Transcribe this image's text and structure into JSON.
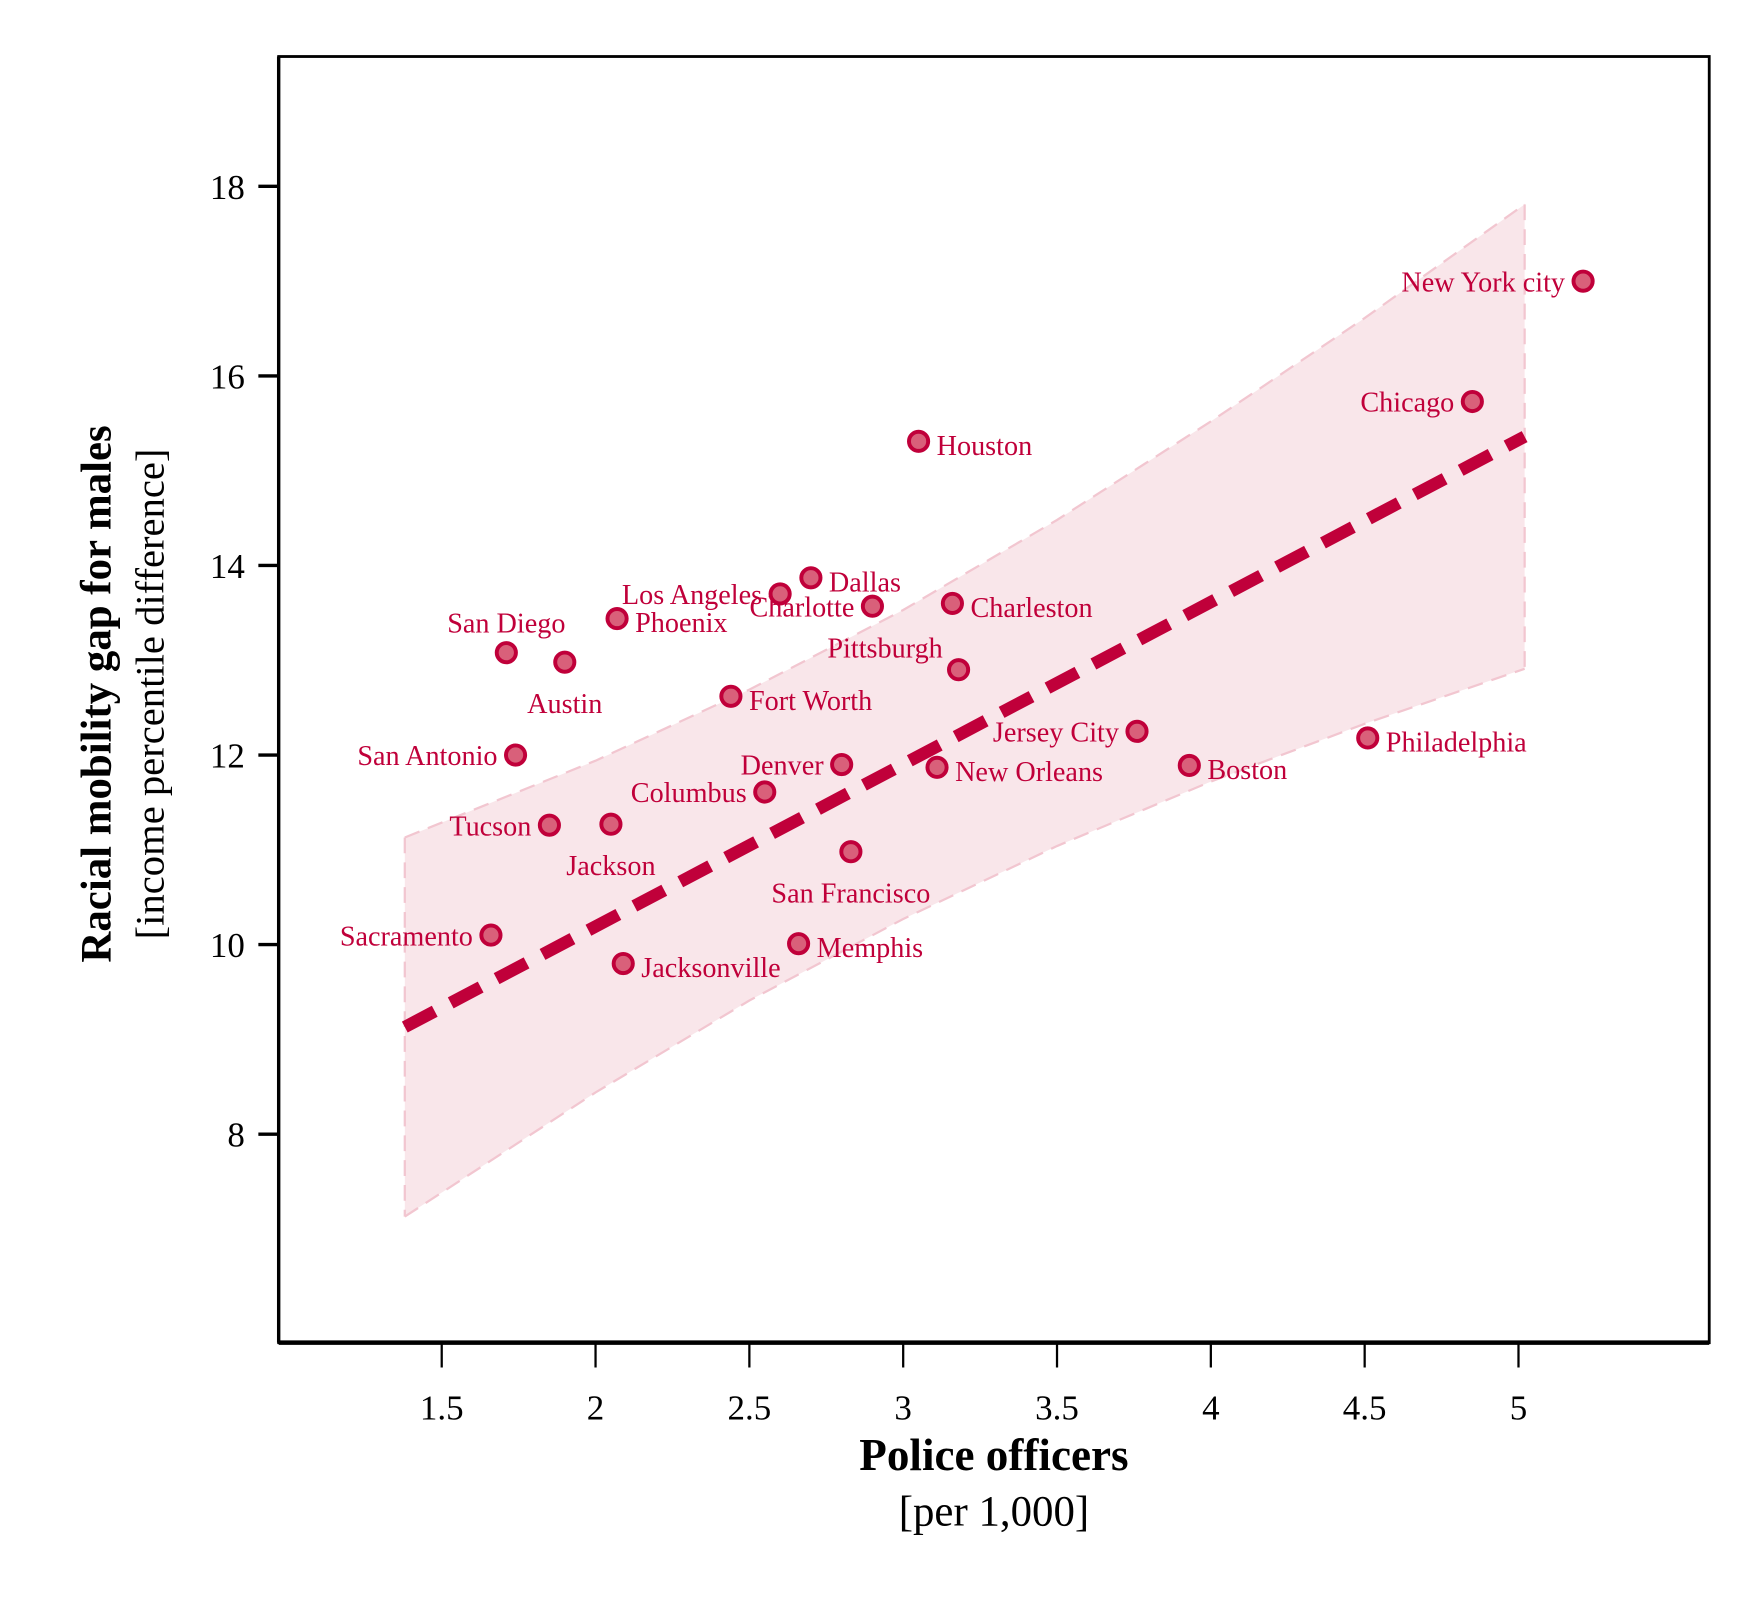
{
  "chart_data": {
    "type": "scatter",
    "xlabel": "Police officers",
    "xlabel_sub": "[per 1,000]",
    "ylabel": "Racial mobility gap for males",
    "ylabel_sub": "[income percentile difference]",
    "xlim": [
      0.97,
      5.62
    ],
    "ylim": [
      5.8,
      19.37
    ],
    "xticks": [
      1.5,
      2,
      2.5,
      3,
      3.5,
      4,
      4.5,
      5
    ],
    "xtick_labels": [
      "1.5",
      "2",
      "2.5",
      "3",
      "3.5",
      "4",
      "4.5",
      "5"
    ],
    "yticks": [
      8,
      10,
      12,
      14,
      16,
      18
    ],
    "ytick_labels": [
      "8",
      "10",
      "12",
      "14",
      "16",
      "18"
    ],
    "grid": false,
    "colors": {
      "point_fill": "#d9607a",
      "point_stroke": "#c0003a",
      "label": "#c0003a",
      "fit_line": "#c0003a",
      "band_fill": "#f9e6ea",
      "band_edge": "#f2c6d0"
    },
    "points": [
      {
        "label": "New York city",
        "x": 5.21,
        "y": 17.0,
        "label_pos": "left"
      },
      {
        "label": "Chicago",
        "x": 4.85,
        "y": 15.73,
        "label_pos": "left"
      },
      {
        "label": "Houston",
        "x": 3.05,
        "y": 15.31,
        "label_pos": "right"
      },
      {
        "label": "Dallas",
        "x": 2.7,
        "y": 13.87,
        "label_pos": "right"
      },
      {
        "label": "Los Angeles",
        "x": 2.6,
        "y": 13.7,
        "label_pos": "left"
      },
      {
        "label": "Charlotte",
        "x": 2.9,
        "y": 13.57,
        "label_pos": "left"
      },
      {
        "label": "Charleston",
        "x": 3.16,
        "y": 13.6,
        "label_pos": "right"
      },
      {
        "label": "Phoenix",
        "x": 2.07,
        "y": 13.44,
        "label_pos": "right"
      },
      {
        "label": "San Diego",
        "x": 1.71,
        "y": 13.08,
        "label_pos": "above"
      },
      {
        "label": "Austin",
        "x": 1.9,
        "y": 12.98,
        "label_pos": "below"
      },
      {
        "label": "Pittsburgh",
        "x": 3.18,
        "y": 12.9,
        "label_pos": "above-left"
      },
      {
        "label": "Fort Worth",
        "x": 2.44,
        "y": 12.62,
        "label_pos": "right"
      },
      {
        "label": "San Antonio",
        "x": 1.74,
        "y": 12.0,
        "label_pos": "left"
      },
      {
        "label": "Jersey City",
        "x": 3.76,
        "y": 12.25,
        "label_pos": "left"
      },
      {
        "label": "Philadelphia",
        "x": 4.51,
        "y": 12.18,
        "label_pos": "right"
      },
      {
        "label": "Boston",
        "x": 3.93,
        "y": 11.89,
        "label_pos": "right"
      },
      {
        "label": "Denver",
        "x": 2.8,
        "y": 11.9,
        "label_pos": "left"
      },
      {
        "label": "New Orleans",
        "x": 3.11,
        "y": 11.87,
        "label_pos": "right"
      },
      {
        "label": "Columbus",
        "x": 2.55,
        "y": 11.61,
        "label_pos": "left"
      },
      {
        "label": "Tucson",
        "x": 1.85,
        "y": 11.26,
        "label_pos": "left"
      },
      {
        "label": "Jackson",
        "x": 2.05,
        "y": 11.27,
        "label_pos": "below"
      },
      {
        "label": "San Francisco",
        "x": 2.83,
        "y": 10.98,
        "label_pos": "below"
      },
      {
        "label": "Sacramento",
        "x": 1.66,
        "y": 10.1,
        "label_pos": "left"
      },
      {
        "label": "Memphis",
        "x": 2.66,
        "y": 10.01,
        "label_pos": "right"
      },
      {
        "label": "Jacksonville",
        "x": 2.09,
        "y": 9.8,
        "label_pos": "right"
      }
    ],
    "fit_line": {
      "x": [
        1.38,
        5.02
      ],
      "y": [
        9.13,
        15.36
      ],
      "style": "dashed"
    },
    "confidence_band": {
      "x": [
        1.38,
        2,
        2.5,
        3,
        3.5,
        4,
        4.5,
        5.02
      ],
      "upper": [
        11.13,
        11.94,
        12.69,
        13.53,
        14.48,
        15.52,
        16.61,
        17.81
      ],
      "lower": [
        7.13,
        8.44,
        9.41,
        10.27,
        11.04,
        11.72,
        12.33,
        12.91
      ]
    }
  }
}
